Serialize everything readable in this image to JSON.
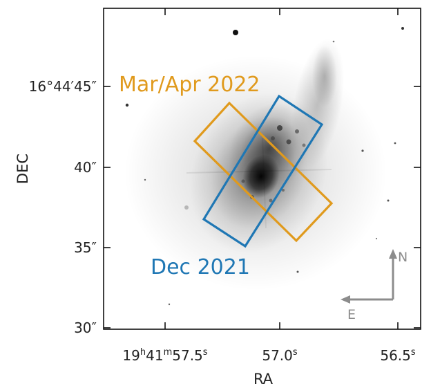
{
  "axes": {
    "x_title": "RA",
    "y_title": "DEC"
  },
  "ra_ticks": [
    {
      "h": "19",
      "m": "41",
      "s": "57.5",
      "label_style": "full"
    },
    {
      "s": "57.0",
      "label_style": "seconds"
    },
    {
      "s": "56.5",
      "label_style": "seconds"
    }
  ],
  "dec_ticks": [
    {
      "label": "16°44′45″"
    },
    {
      "label": "40″"
    },
    {
      "label": "35″"
    },
    {
      "label": "30″"
    }
  ],
  "footprints": [
    {
      "label": "Mar/Apr 2022",
      "color": "#e09a1d"
    },
    {
      "label": "Dec 2021",
      "color": "#1f77b4"
    }
  ],
  "compass": {
    "north": "N",
    "east": "E",
    "color": "#8c8c8c"
  },
  "colors": {
    "frame": "#111111",
    "image_background": "#ffffff"
  }
}
